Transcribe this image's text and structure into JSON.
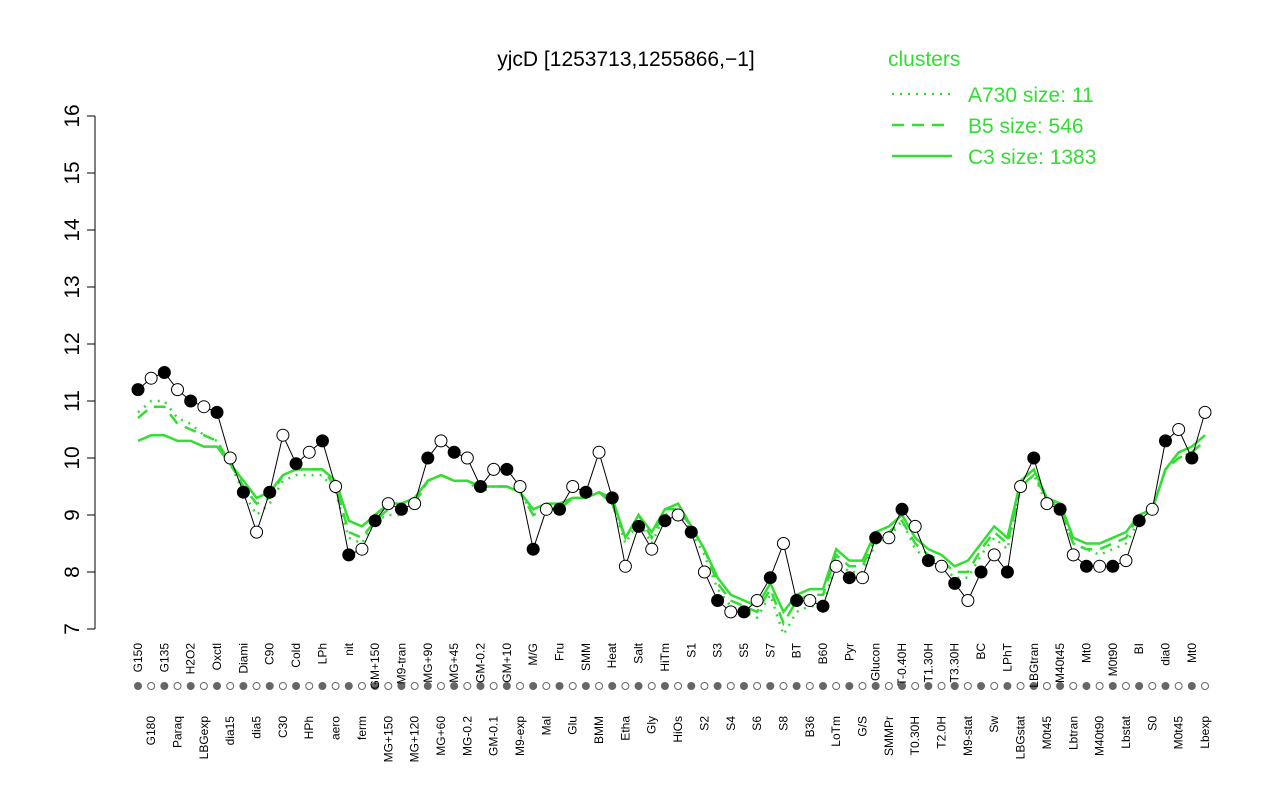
{
  "chart_data": {
    "type": "line",
    "title": "yjcD [1253713,1255866,−1]",
    "legend_title": "clusters",
    "legend_position": "top-right",
    "ylim": [
      7,
      16
    ],
    "yticks": [
      7,
      8,
      9,
      10,
      11,
      12,
      13,
      14,
      15,
      16
    ],
    "points_color": "#000000",
    "categories": [
      "G150",
      "G180",
      "G135",
      "Paraq",
      "H2O2",
      "LBGexp",
      "Oxctl",
      "dia15",
      "Diami",
      "dia5",
      "C90",
      "C30",
      "Cold",
      "HPh",
      "LPh",
      "aero",
      "nit",
      "ferm",
      "GM+150",
      "MG+150",
      "M9-tran",
      "MG+120",
      "MG+90",
      "MG+60",
      "MG+45",
      "MG-0.2",
      "GM-0.2",
      "GM-0.1",
      "GM+10",
      "M9-exp",
      "M/G",
      "Mal",
      "Fru",
      "Glu",
      "SMM",
      "BMM",
      "Heat",
      "Etha",
      "Salt",
      "Gly",
      "HiTm",
      "HiOs",
      "S1",
      "S2",
      "S3",
      "S4",
      "S5",
      "S6",
      "S7",
      "S8",
      "BT",
      "B36",
      "B60",
      "LoTm",
      "Pyr",
      "G/S",
      "Glucon",
      "SMMPr",
      "T-0.40H",
      "T0.30H",
      "T1.30H",
      "T2.0H",
      "T3.30H",
      "M9-stat",
      "BC",
      "Sw",
      "LPhT",
      "LBGstat",
      "LBGtran",
      "M0t45",
      "M40t45",
      "Lbtran",
      "Mt0",
      "M40t90",
      "M0t90",
      "Lbstat",
      "BI",
      "S0",
      "dia0",
      "M0t45",
      "Mt0",
      "Lbexp"
    ],
    "values": [
      11.2,
      11.4,
      11.5,
      11.2,
      11.0,
      10.9,
      10.8,
      10.0,
      9.4,
      8.7,
      9.4,
      10.4,
      9.9,
      10.1,
      10.3,
      9.5,
      8.3,
      8.4,
      8.9,
      9.2,
      9.1,
      9.2,
      10.0,
      10.3,
      10.1,
      10.0,
      9.5,
      9.8,
      9.8,
      9.5,
      8.4,
      9.1,
      9.1,
      9.5,
      9.4,
      10.1,
      9.3,
      8.1,
      8.8,
      8.4,
      8.9,
      9.0,
      8.7,
      8.0,
      7.5,
      7.3,
      7.3,
      7.5,
      7.9,
      8.5,
      7.5,
      7.5,
      7.4,
      8.1,
      7.9,
      7.9,
      8.6,
      8.6,
      9.1,
      8.8,
      8.2,
      8.1,
      7.8,
      7.5,
      8.0,
      8.3,
      8.0,
      9.5,
      10.0,
      9.2,
      9.1,
      8.3,
      8.1,
      8.1,
      8.1,
      8.2,
      8.9,
      9.1,
      10.3,
      10.5,
      10.0,
      10.8
    ],
    "series": [
      {
        "name": "A730 size: 11",
        "color": "#33dd33",
        "style": "dotted",
        "values": [
          10.8,
          11.0,
          11.0,
          10.7,
          10.6,
          10.4,
          10.3,
          9.9,
          9.4,
          9.0,
          9.2,
          9.6,
          9.7,
          9.7,
          9.7,
          9.4,
          8.6,
          8.5,
          8.9,
          9.0,
          9.0,
          9.2,
          9.6,
          9.7,
          9.6,
          9.6,
          9.4,
          9.5,
          9.5,
          9.4,
          9.0,
          9.1,
          9.1,
          9.3,
          9.3,
          9.4,
          9.2,
          8.5,
          8.9,
          8.5,
          9.0,
          9.1,
          8.7,
          8.3,
          7.7,
          7.4,
          7.3,
          7.2,
          7.6,
          6.9,
          7.3,
          7.4,
          7.4,
          8.2,
          8.0,
          8.0,
          8.5,
          8.6,
          8.9,
          8.4,
          8.2,
          8.1,
          7.9,
          7.9,
          8.3,
          8.6,
          8.4,
          9.5,
          9.7,
          9.2,
          9.1,
          8.5,
          8.4,
          8.3,
          8.4,
          8.5,
          8.9,
          9.1,
          9.8,
          10.0,
          10.1,
          10.3
        ]
      },
      {
        "name": "B5 size: 546",
        "color": "#33dd33",
        "style": "dashed",
        "values": [
          10.7,
          10.9,
          10.9,
          10.6,
          10.5,
          10.4,
          10.3,
          9.9,
          9.5,
          9.2,
          9.3,
          9.7,
          9.8,
          9.8,
          9.8,
          9.5,
          8.7,
          8.6,
          8.9,
          9.1,
          9.1,
          9.2,
          9.6,
          9.7,
          9.6,
          9.6,
          9.5,
          9.5,
          9.5,
          9.4,
          9.0,
          9.1,
          9.1,
          9.3,
          9.3,
          9.4,
          9.2,
          8.6,
          9.0,
          8.6,
          9.1,
          9.1,
          8.8,
          8.4,
          7.8,
          7.5,
          7.4,
          7.3,
          7.7,
          7.1,
          7.5,
          7.6,
          7.6,
          8.3,
          8.1,
          8.1,
          8.6,
          8.7,
          8.9,
          8.5,
          8.3,
          8.2,
          8.0,
          8.0,
          8.4,
          8.7,
          8.5,
          9.5,
          9.7,
          9.3,
          9.1,
          8.5,
          8.4,
          8.4,
          8.5,
          8.6,
          9.0,
          9.1,
          9.8,
          10.0,
          10.1,
          10.3
        ]
      },
      {
        "name": "C3 size: 1383",
        "color": "#33dd33",
        "style": "solid",
        "values": [
          10.3,
          10.4,
          10.4,
          10.3,
          10.3,
          10.2,
          10.2,
          9.9,
          9.6,
          9.3,
          9.4,
          9.7,
          9.8,
          9.8,
          9.8,
          9.6,
          8.9,
          8.8,
          9.0,
          9.2,
          9.2,
          9.3,
          9.6,
          9.7,
          9.6,
          9.6,
          9.5,
          9.5,
          9.5,
          9.4,
          9.1,
          9.2,
          9.2,
          9.3,
          9.3,
          9.4,
          9.3,
          8.6,
          9.0,
          8.7,
          9.1,
          9.2,
          8.8,
          8.4,
          7.9,
          7.6,
          7.5,
          7.4,
          7.8,
          7.3,
          7.6,
          7.7,
          7.7,
          8.4,
          8.2,
          8.2,
          8.7,
          8.8,
          9.0,
          8.6,
          8.4,
          8.3,
          8.1,
          8.2,
          8.5,
          8.8,
          8.6,
          9.6,
          9.8,
          9.3,
          9.2,
          8.6,
          8.5,
          8.5,
          8.6,
          8.7,
          9.0,
          9.1,
          9.8,
          10.1,
          10.2,
          10.4
        ]
      }
    ]
  }
}
